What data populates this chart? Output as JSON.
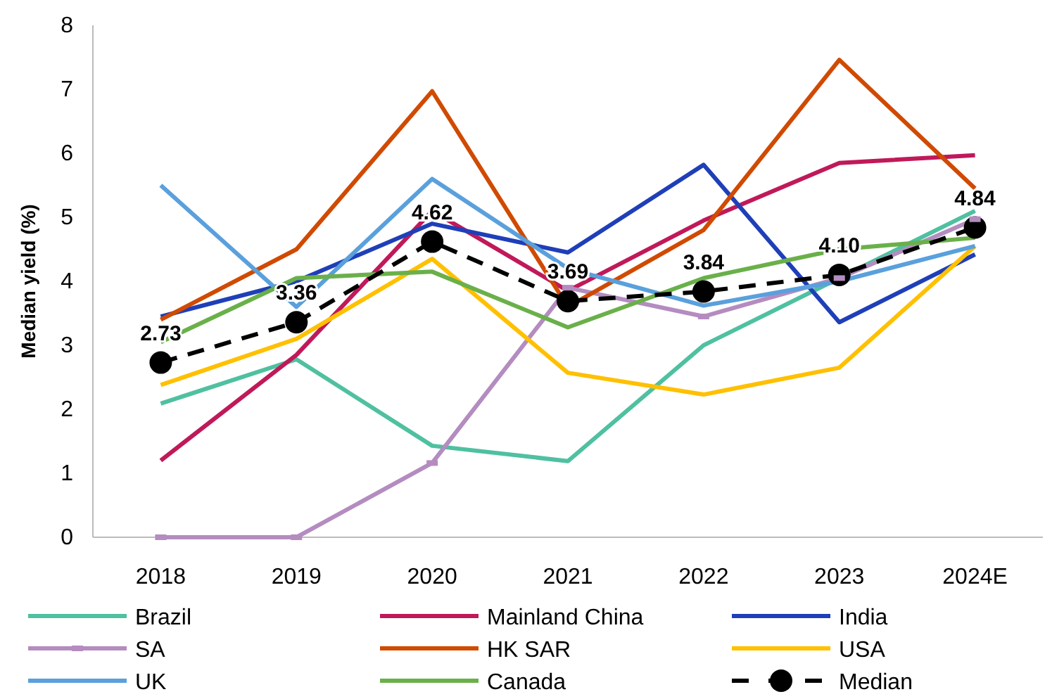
{
  "chart_data": {
    "type": "line",
    "ylabel": "Median yield (%)",
    "categories": [
      "2018",
      "2019",
      "2020",
      "2021",
      "2022",
      "2023",
      "2024E"
    ],
    "ylim": [
      0,
      8
    ],
    "yticks": [
      0,
      1,
      2,
      3,
      4,
      5,
      6,
      7,
      8
    ],
    "grid": false,
    "legend": "bottom",
    "marker": "none",
    "line_style": "solid",
    "series": [
      {
        "name": "Brazil",
        "color": "#4fc0a0",
        "values": [
          2.09,
          2.78,
          1.43,
          1.19,
          3.0,
          4.05,
          5.1
        ]
      },
      {
        "name": "Mainland China",
        "color": "#c0195a",
        "values": [
          1.2,
          2.85,
          5.1,
          3.85,
          4.95,
          5.85,
          5.97
        ]
      },
      {
        "name": "India",
        "color": "#1f3fb8",
        "values": [
          3.45,
          4.0,
          4.9,
          4.45,
          5.82,
          3.36,
          4.42
        ]
      },
      {
        "name": "SA",
        "color": "#b48cc0",
        "marker": "square",
        "values": [
          0,
          0,
          1.16,
          3.9,
          3.45,
          4.05,
          4.97
        ]
      },
      {
        "name": "HK SAR",
        "color": "#d04a00",
        "values": [
          3.4,
          4.5,
          6.97,
          3.6,
          4.8,
          7.46,
          5.45
        ]
      },
      {
        "name": "USA",
        "color": "#ffc000",
        "values": [
          2.38,
          3.1,
          4.35,
          2.57,
          2.23,
          2.65,
          4.55
        ]
      },
      {
        "name": "UK",
        "color": "#5aa0dc",
        "values": [
          5.5,
          3.6,
          5.6,
          4.2,
          3.62,
          4.0,
          4.55
        ]
      },
      {
        "name": "Canada",
        "color": "#6ab04a",
        "values": [
          3.05,
          4.05,
          4.15,
          3.28,
          4.05,
          4.5,
          4.68
        ]
      },
      {
        "name": "Median",
        "color": "#000000",
        "marker": "circle",
        "line_style": "dashed",
        "values": [
          2.73,
          3.36,
          4.62,
          3.69,
          3.84,
          4.1,
          4.84
        ],
        "value_labels": [
          "2.73",
          "3.36",
          "4.62",
          "3.69",
          "3.84",
          "4.10",
          "4.84"
        ]
      }
    ]
  }
}
